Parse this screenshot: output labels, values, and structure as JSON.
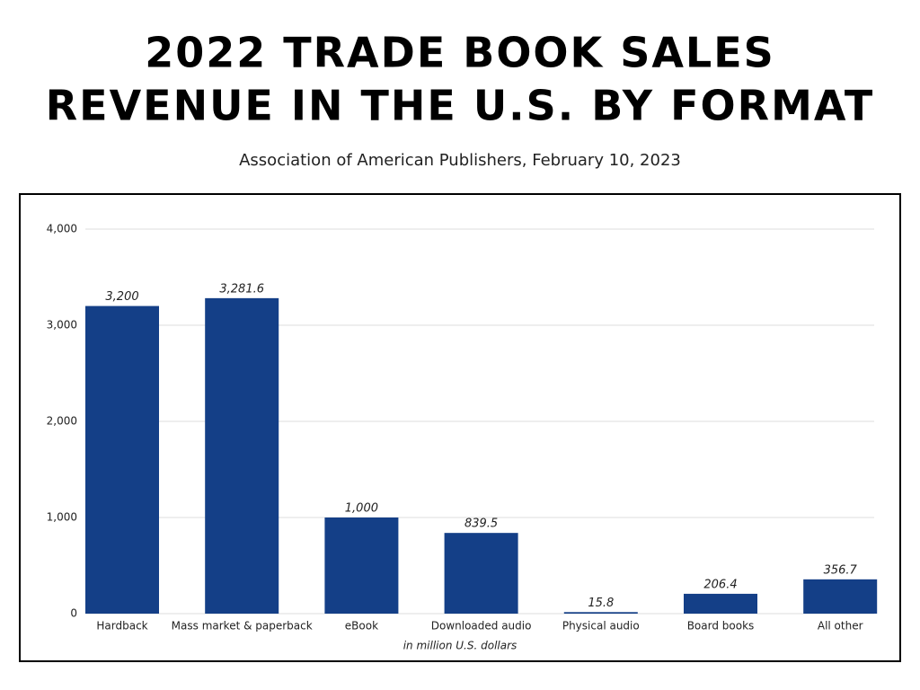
{
  "chart_data": {
    "type": "bar",
    "title": [
      "2022 TRADE BOOK SALES",
      "REVENUE IN THE U.S. BY FORMAT"
    ],
    "subtitle": "Association of American Publishers, February 10, 2023",
    "xlabel": "in million U.S. dollars",
    "categories": [
      "Hardback",
      "Mass market & paperback",
      "eBook",
      "Downloaded audio",
      "Physical audio",
      "Board books",
      "All other"
    ],
    "values": [
      3200,
      3281.6,
      1000,
      839.5,
      15.8,
      206.4,
      356.7
    ],
    "value_labels": [
      "3,200",
      "3,281.6",
      "1,000",
      "839.5",
      "15.8",
      "206.4",
      "356.7"
    ],
    "color": "#143f87",
    "ylim": [
      0,
      4000
    ],
    "yticks": [
      0,
      {
        "value": 1000,
        "label": "1,000"
      },
      {
        "value": 2000,
        "label": "2,000"
      },
      {
        "value": 3000,
        "label": "3,000"
      },
      {
        "value": 4000,
        "label": "4,000"
      }
    ],
    "grid": true
  }
}
